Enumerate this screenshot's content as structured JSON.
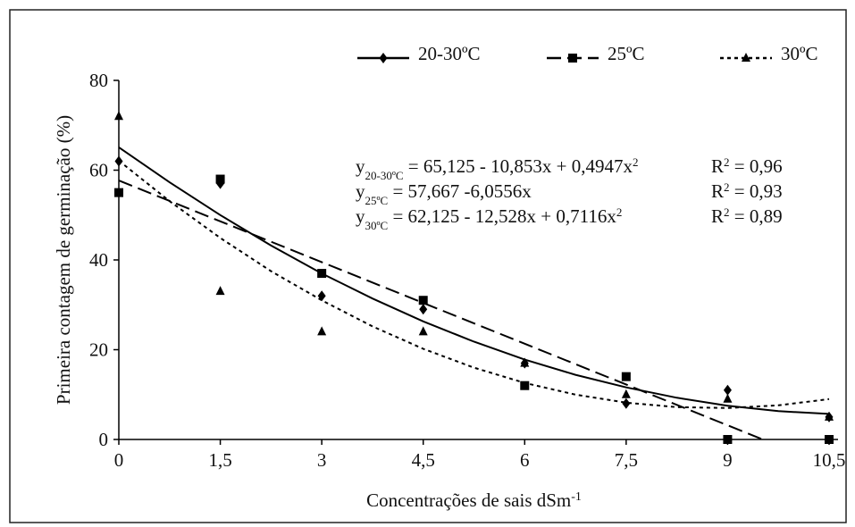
{
  "chart_data": {
    "type": "scatter",
    "x_label": {
      "text": "Concentrações de sais dSm",
      "sup": "-1"
    },
    "y_label": "Primeira contagem de germinação (%)",
    "x": [
      0,
      1.5,
      3,
      4.5,
      6,
      7.5,
      9,
      10.5
    ],
    "xlim": [
      0,
      10.5
    ],
    "ylim": [
      0,
      80
    ],
    "xticks": [
      0,
      {
        "value": 1.5,
        "label": "1,5"
      },
      3,
      {
        "value": 4.5,
        "label": "4,5"
      },
      6,
      {
        "value": 7.5,
        "label": "7,5"
      },
      9,
      {
        "value": 10.5,
        "label": "10,5"
      }
    ],
    "yticks": [
      0,
      20,
      40,
      60,
      80
    ],
    "grid": false,
    "series": [
      {
        "name": "20-30ºC",
        "color": "#000000",
        "marker": "diamond",
        "dash": "solid",
        "values": [
          62,
          57,
          32,
          29,
          17,
          8,
          11,
          5
        ],
        "fit": {
          "x": [
            0,
            0.75,
            1.5,
            2.25,
            3,
            3.75,
            4.5,
            5.25,
            6,
            6.75,
            7.5,
            8.25,
            9,
            9.75,
            10.5
          ],
          "values": [
            65.1,
            57.3,
            50.0,
            43.2,
            37.0,
            31.4,
            26.3,
            21.8,
            17.8,
            14.4,
            11.6,
            9.3,
            7.5,
            6.3,
            5.7
          ]
        }
      },
      {
        "name": "25ºC",
        "color": "#000000",
        "marker": "square",
        "dash": "dashed",
        "values": [
          55,
          58,
          37,
          31,
          12,
          14,
          0,
          0
        ],
        "fit": {
          "x": [
            0,
            9.52
          ],
          "values": [
            57.7,
            0
          ]
        }
      },
      {
        "name": "30ºC",
        "color": "#000000",
        "marker": "triangle",
        "dash": "dotted",
        "values": [
          72,
          33,
          24,
          24,
          17,
          10,
          9,
          5
        ],
        "fit": {
          "x": [
            0,
            0.75,
            1.5,
            2.25,
            3,
            3.75,
            4.5,
            5.25,
            6,
            6.75,
            7.5,
            8.25,
            9,
            9.75,
            10.5
          ],
          "values": [
            62.1,
            53.1,
            44.9,
            37.5,
            31.0,
            25.2,
            20.2,
            16.0,
            12.6,
            10.0,
            8.2,
            7.2,
            7.0,
            7.6,
            9.0
          ]
        }
      }
    ],
    "annotations": [
      {
        "y": "y",
        "sub": "20-30ºC",
        "eq": " = 65,125 - 10,853x +  0,4947x",
        "sup": "2",
        "r": "R",
        "rsup": "2",
        "rval": " = 0,96"
      },
      {
        "y": "y",
        "sub": "25ºC",
        "eq": " = 57,667 -6,0556x",
        "r": "R",
        "rsup": "2",
        "rval": " = 0,93"
      },
      {
        "y": "y",
        "sub": "30ºC",
        "eq": " = 62,125 - 12,528x + 0,7116x",
        "sup": "2",
        "r": "R",
        "rsup": "2",
        "rval": " = 0,89"
      }
    ]
  }
}
